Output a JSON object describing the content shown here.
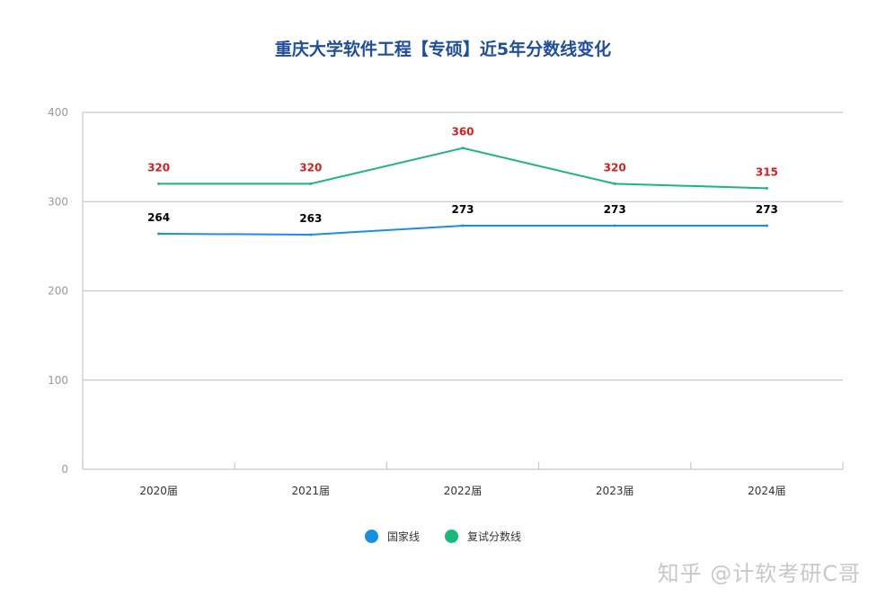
{
  "chart_data": {
    "type": "line",
    "title": "重庆大学软件工程【专硕】近5年分数线变化",
    "categories": [
      "2020届",
      "2021届",
      "2022届",
      "2023届",
      "2024届"
    ],
    "ylim": [
      0,
      400
    ],
    "yticks": [
      "0",
      "100",
      "200",
      "300",
      "400"
    ],
    "grid": true,
    "legend_position": "bottom",
    "series": [
      {
        "name": "国家线",
        "values": [
          264,
          263,
          273,
          273,
          273
        ],
        "color": "#1a8fe0",
        "label_color": "#000000"
      },
      {
        "name": "复试分数线",
        "values": [
          320,
          320,
          360,
          320,
          315
        ],
        "color": "#19b87a",
        "label_color": "#d42020"
      }
    ]
  },
  "watermark": "知乎 @计软考研C哥"
}
